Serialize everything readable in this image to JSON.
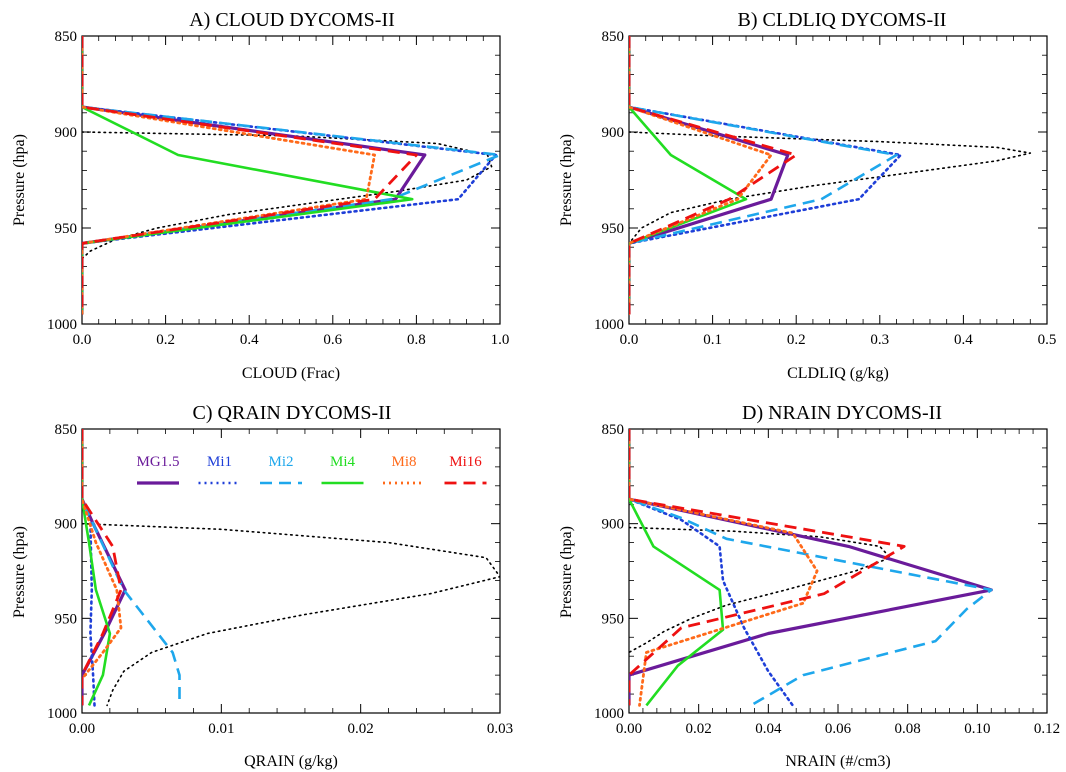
{
  "chart_data": [
    {
      "type": "line",
      "title": "A) CLOUD DYCOMS-II",
      "xlabel": "CLOUD (Frac)",
      "ylabel": "Pressure (hpa)",
      "xlim": [
        0,
        1.0
      ],
      "ylim": [
        850,
        1000
      ],
      "xticks": [
        "0.0",
        "0.2",
        "0.4",
        "0.6",
        "0.8",
        "1.0"
      ],
      "yticks": [
        "850",
        "900",
        "950",
        "1000"
      ],
      "legend": false,
      "series": [
        {
          "style": "MG1.5",
          "points": [
            [
              0,
              850
            ],
            [
              0,
              887
            ],
            [
              0.82,
              912
            ],
            [
              0.75,
              935
            ],
            [
              0,
              958
            ],
            [
              0,
              995
            ]
          ]
        },
        {
          "style": "Mi1",
          "points": [
            [
              0,
              850
            ],
            [
              0,
              887
            ],
            [
              0.99,
              912
            ],
            [
              0.9,
              935
            ],
            [
              0,
              958
            ],
            [
              0,
              995
            ]
          ]
        },
        {
          "style": "Mi2",
          "points": [
            [
              0,
              850
            ],
            [
              0,
              887
            ],
            [
              1.0,
              912
            ],
            [
              0.74,
              935
            ],
            [
              0,
              958
            ],
            [
              0,
              995
            ]
          ]
        },
        {
          "style": "Mi4",
          "points": [
            [
              0,
              850
            ],
            [
              0,
              887
            ],
            [
              0.23,
              912
            ],
            [
              0.79,
              935
            ],
            [
              0,
              958
            ],
            [
              0,
              995
            ]
          ]
        },
        {
          "style": "Mi8",
          "points": [
            [
              0,
              850
            ],
            [
              0,
              887
            ],
            [
              0.7,
              912
            ],
            [
              0.68,
              935
            ],
            [
              0,
              958
            ],
            [
              0,
              995
            ]
          ]
        },
        {
          "style": "Mi16",
          "points": [
            [
              0,
              850
            ],
            [
              0,
              887
            ],
            [
              0.8,
              912
            ],
            [
              0.7,
              935
            ],
            [
              0,
              958
            ],
            [
              0,
              995
            ]
          ]
        },
        {
          "style": "LES",
          "points": [
            [
              0,
              900
            ],
            [
              0.5,
              902
            ],
            [
              0.85,
              906
            ],
            [
              0.97,
              912
            ],
            [
              0.98,
              918
            ],
            [
              0.92,
              925
            ],
            [
              0.75,
              931
            ],
            [
              0.55,
              937
            ],
            [
              0.35,
              943
            ],
            [
              0.18,
              950
            ],
            [
              0.08,
              956
            ],
            [
              0.02,
              962
            ],
            [
              0,
              966
            ]
          ]
        }
      ]
    },
    {
      "type": "line",
      "title": "B) CLDLIQ DYCOMS-II",
      "xlabel": "CLDLIQ (g/kg)",
      "ylabel": "Pressure (hpa)",
      "xlim": [
        0,
        0.5
      ],
      "ylim": [
        850,
        1000
      ],
      "xticks": [
        "0.0",
        "0.1",
        "0.2",
        "0.3",
        "0.4",
        "0.5"
      ],
      "yticks": [
        "850",
        "900",
        "950",
        "1000"
      ],
      "legend": false,
      "series": [
        {
          "style": "MG1.5",
          "points": [
            [
              0,
              850
            ],
            [
              0,
              887
            ],
            [
              0.19,
              912
            ],
            [
              0.17,
              935
            ],
            [
              0,
              958
            ],
            [
              0,
              995
            ]
          ]
        },
        {
          "style": "Mi1",
          "points": [
            [
              0,
              850
            ],
            [
              0,
              887
            ],
            [
              0.325,
              912
            ],
            [
              0.275,
              935
            ],
            [
              0,
              958
            ],
            [
              0,
              995
            ]
          ]
        },
        {
          "style": "Mi2",
          "points": [
            [
              0,
              850
            ],
            [
              0,
              887
            ],
            [
              0.32,
              912
            ],
            [
              0.23,
              935
            ],
            [
              0,
              958
            ],
            [
              0,
              995
            ]
          ]
        },
        {
          "style": "Mi4",
          "points": [
            [
              0,
              850
            ],
            [
              0,
              887
            ],
            [
              0.05,
              912
            ],
            [
              0.14,
              935
            ],
            [
              0,
              958
            ],
            [
              0,
              995
            ]
          ]
        },
        {
          "style": "Mi8",
          "points": [
            [
              0,
              850
            ],
            [
              0,
              887
            ],
            [
              0.17,
              912
            ],
            [
              0.13,
              935
            ],
            [
              0,
              958
            ],
            [
              0,
              995
            ]
          ]
        },
        {
          "style": "Mi16",
          "points": [
            [
              0,
              850
            ],
            [
              0,
              887
            ],
            [
              0.2,
              912
            ],
            [
              0.12,
              935
            ],
            [
              0,
              958
            ],
            [
              0,
              995
            ]
          ]
        },
        {
          "style": "LES",
          "points": [
            [
              0,
              900
            ],
            [
              0.1,
              902
            ],
            [
              0.3,
              905
            ],
            [
              0.44,
              908
            ],
            [
              0.48,
              911
            ],
            [
              0.44,
              915
            ],
            [
              0.34,
              921
            ],
            [
              0.22,
              928
            ],
            [
              0.12,
              935
            ],
            [
              0.05,
              942
            ],
            [
              0.015,
              950
            ],
            [
              0,
              958
            ]
          ]
        }
      ]
    },
    {
      "type": "line",
      "title": "C) QRAIN DYCOMS-II",
      "xlabel": "QRAIN (g/kg)",
      "ylabel": "Pressure (hpa)",
      "xlim": [
        0,
        0.03
      ],
      "ylim": [
        850,
        1000
      ],
      "xticks": [
        "0.00",
        "0.01",
        "0.02",
        "0.03"
      ],
      "yticks": [
        "850",
        "900",
        "950",
        "1000"
      ],
      "legend": true,
      "series": [
        {
          "name": "MG1.5",
          "style": "MG1.5",
          "points": [
            [
              0,
              850
            ],
            [
              0,
              887
            ],
            [
              0.0008,
              900
            ],
            [
              0.0031,
              935
            ],
            [
              0.0016,
              958
            ],
            [
              0,
              980
            ],
            [
              0,
              996
            ]
          ]
        },
        {
          "name": "Mi1",
          "style": "Mi1",
          "points": [
            [
              0,
              850
            ],
            [
              0,
              887
            ],
            [
              0.0006,
              900
            ],
            [
              0.0007,
              935
            ],
            [
              0.0006,
              958
            ],
            [
              0.0008,
              980
            ],
            [
              0.0009,
              996
            ]
          ]
        },
        {
          "name": "Mi2",
          "style": "Mi2",
          "points": [
            [
              0,
              850
            ],
            [
              0,
              887
            ],
            [
              0.0008,
              900
            ],
            [
              0.003,
              935
            ],
            [
              0.0065,
              968
            ],
            [
              0.007,
              980
            ],
            [
              0.007,
              996
            ]
          ]
        },
        {
          "name": "Mi4",
          "style": "Mi4",
          "points": [
            [
              0,
              850
            ],
            [
              0,
              887
            ],
            [
              0.0005,
              910
            ],
            [
              0.001,
              935
            ],
            [
              0.002,
              958
            ],
            [
              0.0015,
              980
            ],
            [
              0.0005,
              996
            ]
          ]
        },
        {
          "name": "Mi8",
          "style": "Mi8",
          "points": [
            [
              0,
              850
            ],
            [
              0,
              887
            ],
            [
              0.001,
              910
            ],
            [
              0.0025,
              935
            ],
            [
              0.0028,
              955
            ],
            [
              0.0015,
              968
            ],
            [
              0,
              982
            ]
          ]
        },
        {
          "name": "Mi16",
          "style": "Mi16",
          "points": [
            [
              0,
              850
            ],
            [
              0,
              887
            ],
            [
              0.0022,
              912
            ],
            [
              0.0028,
              935
            ],
            [
              0.0015,
              958
            ],
            [
              0,
              980
            ],
            [
              0,
              996
            ]
          ]
        },
        {
          "style": "LES",
          "points": [
            [
              0,
              900
            ],
            [
              0.01,
              903
            ],
            [
              0.022,
              910
            ],
            [
              0.029,
              918
            ],
            [
              0.03,
              928
            ],
            [
              0.025,
              937
            ],
            [
              0.016,
              948
            ],
            [
              0.009,
              958
            ],
            [
              0.005,
              968
            ],
            [
              0.003,
              978
            ],
            [
              0.0022,
              988
            ],
            [
              0.0018,
              996
            ]
          ]
        }
      ]
    },
    {
      "type": "line",
      "title": "D) NRAIN DYCOMS-II",
      "xlabel": "NRAIN (#/cm3)",
      "ylabel": "Pressure (hpa)",
      "xlim": [
        0,
        0.12
      ],
      "ylim": [
        850,
        1000
      ],
      "xticks": [
        "0.00",
        "0.02",
        "0.04",
        "0.06",
        "0.08",
        "0.10",
        "0.12"
      ],
      "yticks": [
        "850",
        "900",
        "950",
        "1000"
      ],
      "legend": false,
      "series": [
        {
          "style": "MG1.5",
          "points": [
            [
              0,
              850
            ],
            [
              0,
              887
            ],
            [
              0.063,
              912
            ],
            [
              0.104,
              935
            ],
            [
              0.04,
              958
            ],
            [
              0,
              980
            ],
            [
              0,
              996
            ]
          ]
        },
        {
          "style": "Mi1",
          "points": [
            [
              0,
              850
            ],
            [
              0,
              887
            ],
            [
              0.015,
              898
            ],
            [
              0.026,
              912
            ],
            [
              0.027,
              930
            ],
            [
              0.033,
              955
            ],
            [
              0.04,
              978
            ],
            [
              0.047,
              996
            ]
          ]
        },
        {
          "style": "Mi2",
          "points": [
            [
              0,
              850
            ],
            [
              0,
              887
            ],
            [
              0.015,
              897
            ],
            [
              0.028,
              908
            ],
            [
              0.104,
              935
            ],
            [
              0.097,
              945
            ],
            [
              0.088,
              962
            ],
            [
              0.05,
              980
            ],
            [
              0.035,
              996
            ]
          ]
        },
        {
          "style": "Mi4",
          "points": [
            [
              0,
              850
            ],
            [
              0,
              887
            ],
            [
              0.007,
              912
            ],
            [
              0.026,
              935
            ],
            [
              0.027,
              956
            ],
            [
              0.014,
              975
            ],
            [
              0.005,
              996
            ]
          ]
        },
        {
          "style": "Mi8",
          "points": [
            [
              0,
              850
            ],
            [
              0,
              887
            ],
            [
              0.047,
              905
            ],
            [
              0.054,
              925
            ],
            [
              0.05,
              942
            ],
            [
              0.005,
              968
            ],
            [
              0.003,
              996
            ]
          ]
        },
        {
          "style": "Mi16",
          "points": [
            [
              0,
              850
            ],
            [
              0,
              887
            ],
            [
              0.079,
              912
            ],
            [
              0.056,
              937
            ],
            [
              0.015,
              955
            ],
            [
              0,
              980
            ],
            [
              0,
              996
            ]
          ]
        },
        {
          "style": "LES",
          "points": [
            [
              0,
              902
            ],
            [
              0.03,
              904
            ],
            [
              0.055,
              907
            ],
            [
              0.072,
              912
            ],
            [
              0.075,
              918
            ],
            [
              0.065,
              925
            ],
            [
              0.045,
              935
            ],
            [
              0.028,
              943
            ],
            [
              0.018,
              950
            ],
            [
              0.01,
              957
            ],
            [
              0.005,
              963
            ],
            [
              0,
              968
            ]
          ]
        }
      ]
    }
  ],
  "legend": {
    "entries": [
      "MG1.5",
      "Mi1",
      "Mi2",
      "Mi4",
      "Mi8",
      "Mi16"
    ]
  },
  "styles": {
    "MG1.5": {
      "color": "#6a1b9a",
      "dash": "",
      "width": 3.2
    },
    "Mi1": {
      "color": "#1f3fd8",
      "dash": "2,4",
      "width": 2.6
    },
    "Mi2": {
      "color": "#1ea7ec",
      "dash": "12,7",
      "width": 2.6
    },
    "Mi4": {
      "color": "#22dd22",
      "dash": "",
      "width": 2.6
    },
    "Mi8": {
      "color": "#ff6a1a",
      "dash": "2,4",
      "width": 2.8
    },
    "Mi16": {
      "color": "#ee1111",
      "dash": "12,7",
      "width": 2.8
    },
    "LES": {
      "color": "#000000",
      "dash": "1.5,4",
      "width": 1.6
    }
  }
}
